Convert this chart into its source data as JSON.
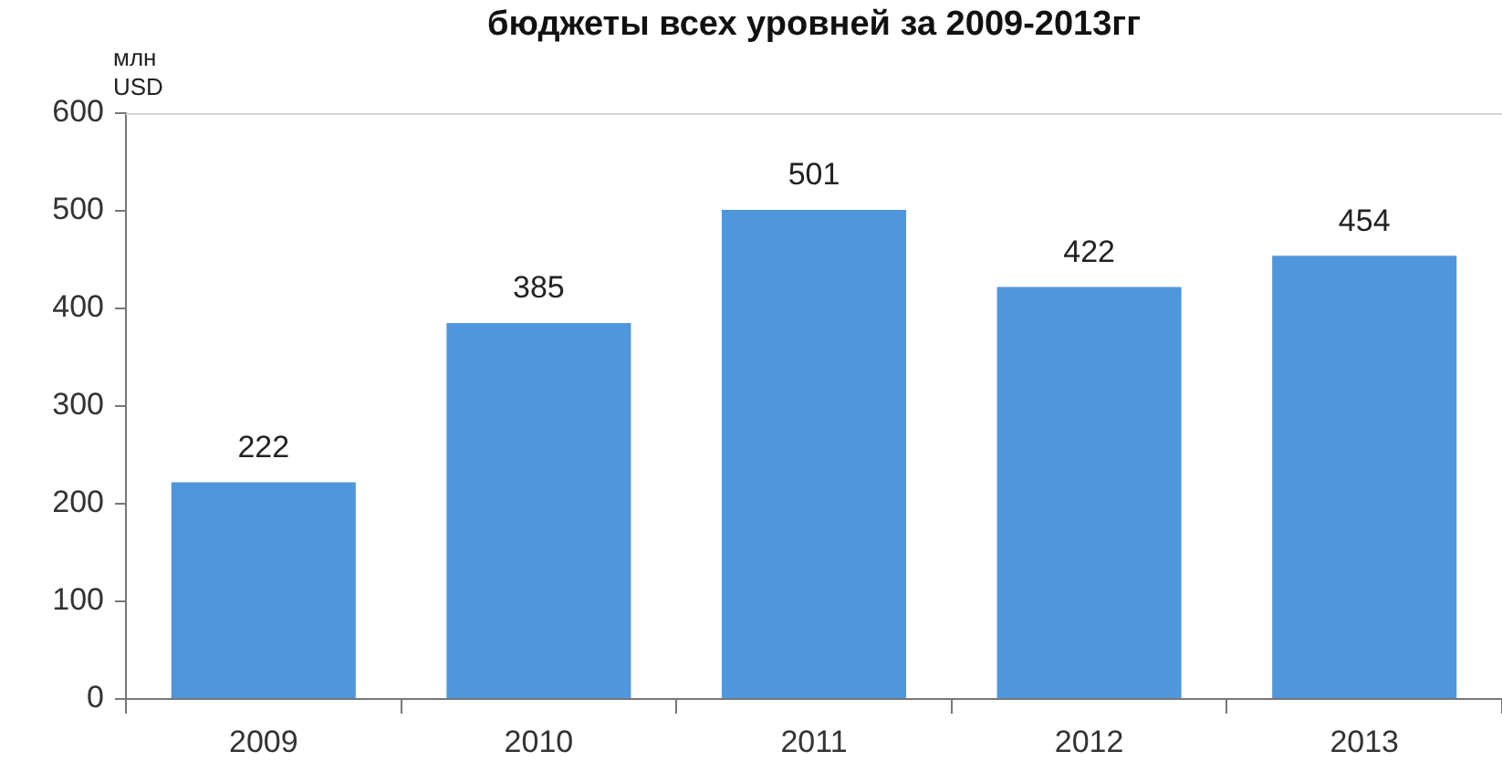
{
  "chart_data": {
    "type": "bar",
    "title": "бюджеты всех уровней за 2009-2013гг",
    "ylabel": "млн USD",
    "categories": [
      "2009",
      "2010",
      "2011",
      "2012",
      "2013"
    ],
    "values": [
      222,
      385,
      501,
      422,
      454
    ],
    "color": "#5096dc",
    "ylim": [
      0,
      600
    ],
    "yticks": [
      0,
      100,
      200,
      300,
      400,
      500,
      600
    ],
    "grid": false,
    "legend": false,
    "data_labels": true
  }
}
